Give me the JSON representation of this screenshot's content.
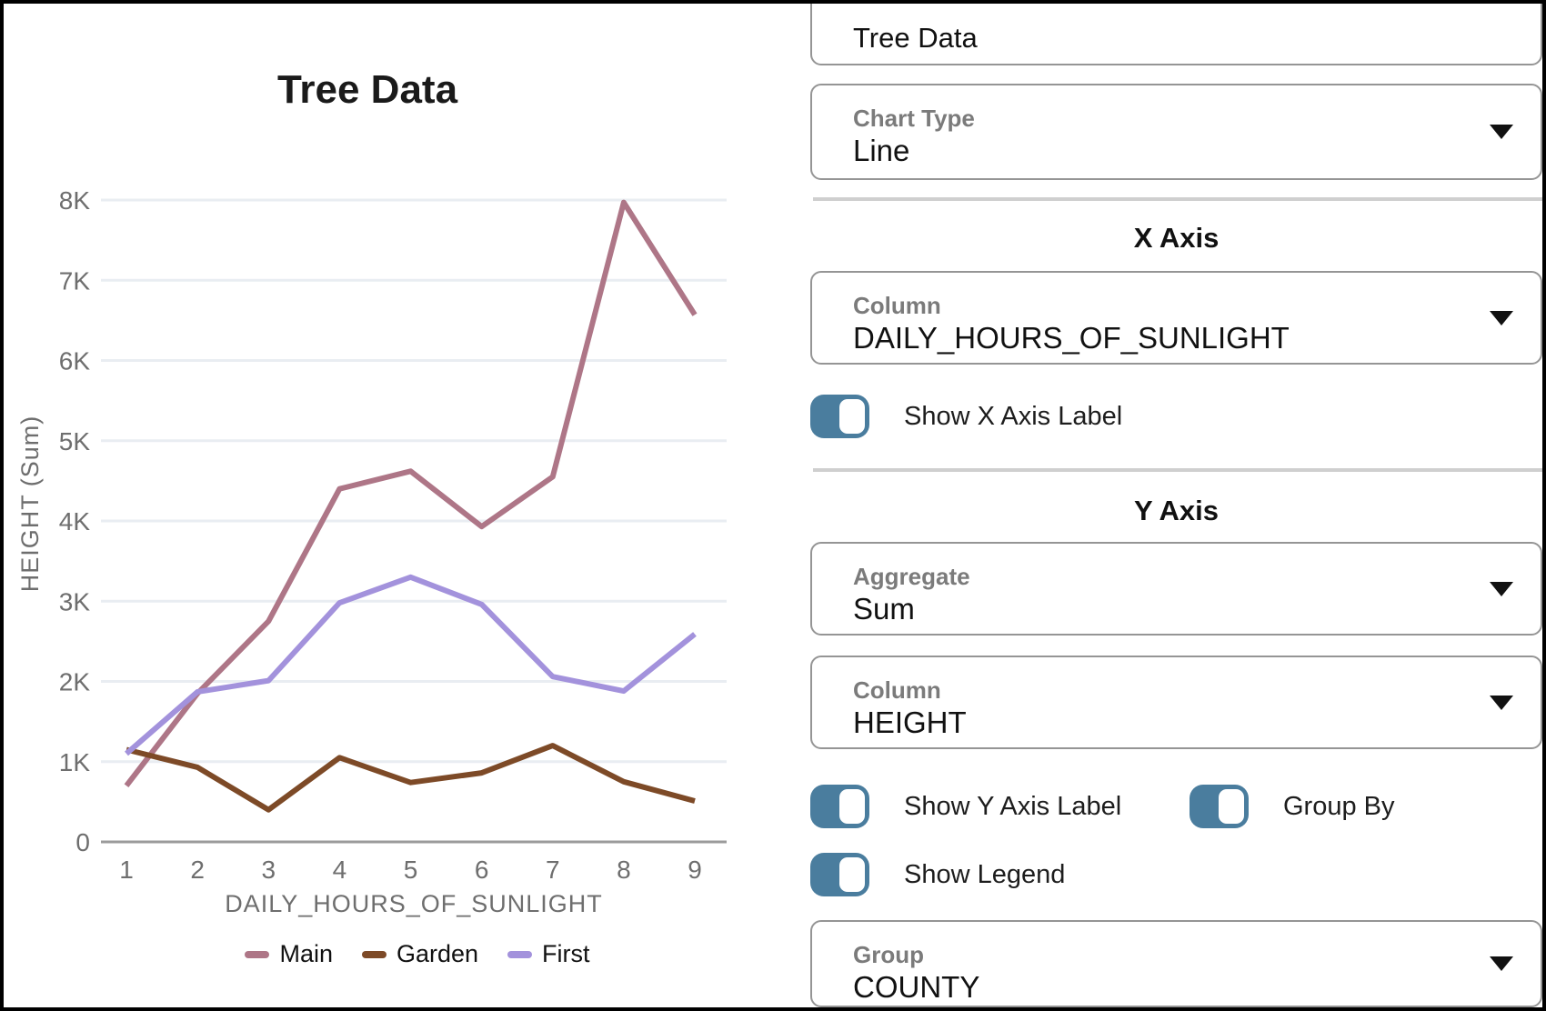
{
  "chart_data": {
    "type": "line",
    "title": "Tree Data",
    "xlabel": "DAILY_HOURS_OF_SUNLIGHT",
    "ylabel": "HEIGHT (Sum)",
    "x": [
      1,
      2,
      3,
      4,
      5,
      6,
      7,
      8,
      9
    ],
    "y_ticks": [
      "0",
      "1K",
      "2K",
      "3K",
      "4K",
      "5K",
      "6K",
      "7K",
      "8K"
    ],
    "ylim": [
      0,
      8000
    ],
    "grid": true,
    "legend_position": "bottom",
    "series": [
      {
        "name": "Main",
        "color": "#ae7687",
        "values": [
          700,
          1850,
          2750,
          4400,
          4620,
          3930,
          4550,
          7970,
          6570
        ]
      },
      {
        "name": "Garden",
        "color": "#7d4a27",
        "values": [
          1150,
          930,
          400,
          1050,
          740,
          860,
          1200,
          750,
          510
        ]
      },
      {
        "name": "First",
        "color": "#a392dc",
        "values": [
          1100,
          1870,
          2010,
          2980,
          3300,
          2960,
          2060,
          1880,
          2590
        ]
      }
    ]
  },
  "panel": {
    "title_input": {
      "value": "Tree Data"
    },
    "chart_type": {
      "label": "Chart Type",
      "value": "Line"
    },
    "x_axis": {
      "heading": "X Axis",
      "column": {
        "label": "Column",
        "value": "DAILY_HOURS_OF_SUNLIGHT"
      },
      "show_x_axis_label": {
        "label": "Show X Axis Label",
        "on": true
      }
    },
    "y_axis": {
      "heading": "Y Axis",
      "aggregate": {
        "label": "Aggregate",
        "value": "Sum"
      },
      "column": {
        "label": "Column",
        "value": "HEIGHT"
      },
      "show_y_axis_label": {
        "label": "Show Y Axis Label",
        "on": true
      },
      "group_by": {
        "label": "Group By",
        "on": true
      },
      "show_legend": {
        "label": "Show Legend",
        "on": true
      },
      "group": {
        "label": "Group",
        "value": "COUNTY"
      }
    }
  },
  "colors": {
    "accent_toggle": "#4a7d9e",
    "grid_line": "#e9edf2",
    "axis_line": "#9b9b9b",
    "axis_text": "#6e6e6e",
    "title_text": "#1a1a1a",
    "box_border": "#959595",
    "divider": "#cfcfcf"
  }
}
